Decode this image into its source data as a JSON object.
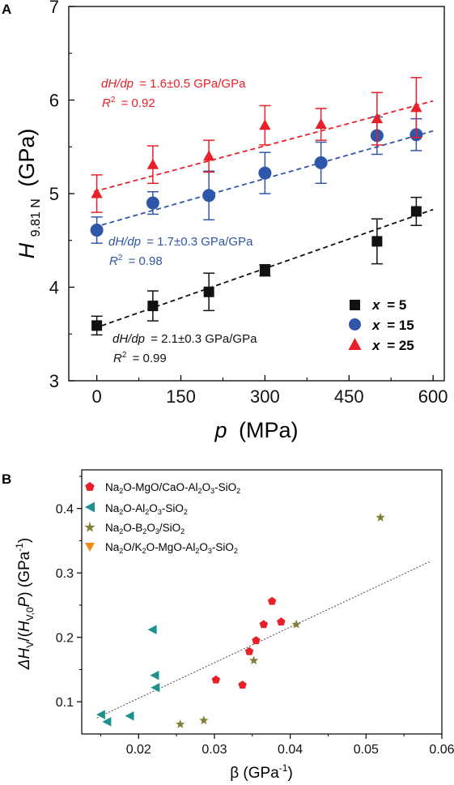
{
  "chart_data": [
    {
      "type": "scatter",
      "panel_label": "A",
      "xlabel_var": "p",
      "xlabel_unit": "(MPa)",
      "ylabel_var": "H",
      "ylabel_sub": "9.81 N",
      "ylabel_unit": "(GPa)",
      "xlim": [
        -50,
        620
      ],
      "ylim": [
        3,
        7
      ],
      "xticks": [
        0,
        150,
        300,
        450,
        600
      ],
      "yticks": [
        3,
        4,
        5,
        6,
        7
      ],
      "series": [
        {
          "name_var": "x",
          "name_value": "= 5",
          "marker": "square",
          "color": "#111111",
          "x": [
            0,
            100,
            200,
            300,
            500,
            570
          ],
          "y": [
            3.59,
            3.8,
            3.95,
            4.18,
            4.49,
            4.81
          ],
          "err": [
            0.1,
            0.16,
            0.2,
            0.06,
            0.24,
            0.15
          ],
          "fit": {
            "slope": 0.0021,
            "intercept": 3.57
          },
          "eq_var": "dH/dp",
          "eq_text": "= 2.1±0.3 GPa/GPa",
          "r2_text": "= 0.99"
        },
        {
          "name_var": "x",
          "name_value": "= 15",
          "marker": "circle",
          "color": "#2f56a8",
          "x": [
            0,
            100,
            200,
            300,
            400,
            500,
            570
          ],
          "y": [
            4.61,
            4.9,
            4.98,
            5.22,
            5.33,
            5.62,
            5.63
          ],
          "err": [
            0.14,
            0.12,
            0.26,
            0.22,
            0.22,
            0.2,
            0.17
          ],
          "fit": {
            "slope": 0.0017,
            "intercept": 4.65
          },
          "eq_var": "dH/dp",
          "eq_text": "= 1.7±0.3 GPa/GPa",
          "r2_text": "= 0.98"
        },
        {
          "name_var": "x",
          "name_value": "= 25",
          "marker": "triangle",
          "color": "#e8202a",
          "x": [
            0,
            100,
            200,
            300,
            400,
            500,
            570
          ],
          "y": [
            5.0,
            5.31,
            5.4,
            5.73,
            5.74,
            5.8,
            5.92
          ],
          "err": [
            0.2,
            0.2,
            0.17,
            0.21,
            0.17,
            0.28,
            0.32
          ],
          "fit": {
            "slope": 0.0016,
            "intercept": 5.03
          },
          "eq_var": "dH/dp",
          "eq_text": "= 1.6±0.5 GPa/GPa",
          "r2_text": "= 0.92"
        }
      ]
    },
    {
      "type": "scatter",
      "panel_label": "B",
      "xlabel": "β (GPa",
      "xlabel_sup": "-1",
      "ylabel": "ΔH",
      "xlim": [
        0.0125,
        0.06
      ],
      "ylim": [
        0.05,
        0.46
      ],
      "xticks": [
        0.02,
        0.03,
        0.04,
        0.05,
        0.06
      ],
      "xtick_labels": [
        "0.02",
        "0.03",
        "0.04",
        "0.05",
        "0.06"
      ],
      "yticks": [
        0.1,
        0.2,
        0.3,
        0.4
      ],
      "ytick_labels": [
        "0.1",
        "0.2",
        "0.3",
        "0.4"
      ],
      "fit_line": {
        "x": [
          0.0145,
          0.0585
        ],
        "y": [
          0.075,
          0.318
        ]
      },
      "series": [
        {
          "name": "Na2O-MgO/CaO-Al2O3-SiO2",
          "marker": "pentagon",
          "color": "#e8202a",
          "x": [
            0.0302,
            0.0337,
            0.0346,
            0.0355,
            0.0365,
            0.0376,
            0.0388
          ],
          "y": [
            0.134,
            0.126,
            0.178,
            0.195,
            0.22,
            0.256,
            0.224
          ]
        },
        {
          "name": "Na2O-Al2O3-SiO2",
          "marker": "triangle-left",
          "color": "#1d918f",
          "x": [
            0.015,
            0.0158,
            0.0188,
            0.0218,
            0.0221,
            0.0222
          ],
          "y": [
            0.08,
            0.069,
            0.078,
            0.212,
            0.141,
            0.122
          ]
        },
        {
          "name": "Na2O-B2O3/SiO2",
          "marker": "star",
          "color": "#7f7f3a",
          "x": [
            0.0255,
            0.0286,
            0.0352,
            0.0408,
            0.0519
          ],
          "y": [
            0.065,
            0.071,
            0.164,
            0.22,
            0.386
          ]
        },
        {
          "name": "Na2O/K2O-MgO-Al2O3-SiO2",
          "marker": "triangle-down",
          "color": "#f28a1a",
          "x": [],
          "y": []
        }
      ]
    }
  ]
}
